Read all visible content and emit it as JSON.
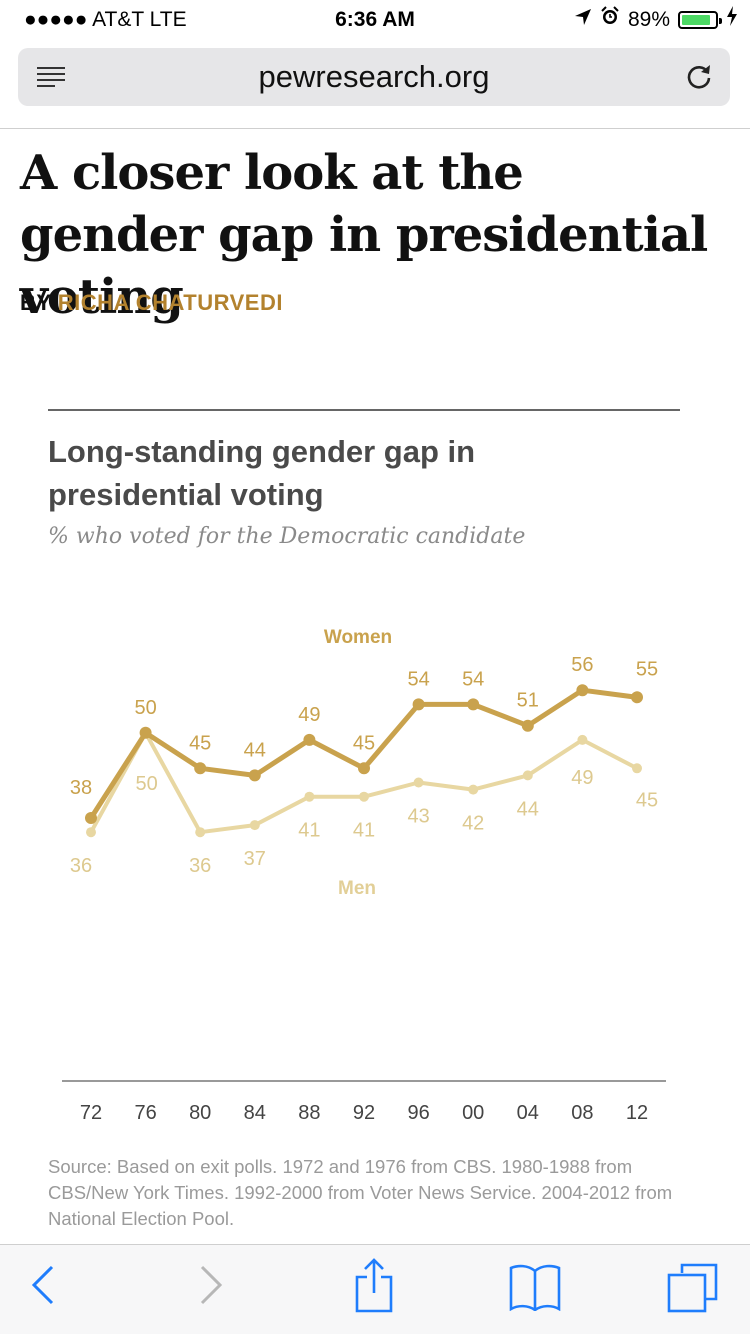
{
  "status_bar": {
    "carrier": "●●●●● AT&T  LTE",
    "time": "6:36 AM",
    "battery": "89%",
    "battery_fraction": 0.89
  },
  "browser": {
    "url": "pewresearch.org"
  },
  "article": {
    "headline": "A closer look at the gender gap in presidential voting",
    "byline_prefix": "BY",
    "author": "RICHA CHATURVEDI"
  },
  "chart_data": {
    "type": "line",
    "title": "Long-standing gender gap in presidential voting",
    "subtitle": "% who voted for the Democratic candidate",
    "categories": [
      "72",
      "76",
      "80",
      "84",
      "88",
      "92",
      "96",
      "00",
      "04",
      "08",
      "12"
    ],
    "series": [
      {
        "name": "Women",
        "color": "#c9a24d",
        "values": [
          38,
          50,
          45,
          44,
          49,
          45,
          54,
          54,
          51,
          56,
          55
        ]
      },
      {
        "name": "Men",
        "color": "#e8d7a2",
        "values": [
          36,
          50,
          36,
          37,
          41,
          41,
          43,
          42,
          44,
          49,
          45
        ]
      }
    ],
    "ylim": [
      30,
      60
    ],
    "source": "Source: Based on exit polls. 1972 and 1976 from CBS. 1980-1988 from CBS/New York Times. 1992-2000 from Voter News Service. 2004-2012 from National Election Pool."
  },
  "toolbar": {
    "icons": [
      "back-icon",
      "forward-icon",
      "share-icon",
      "bookmarks-icon",
      "tabs-icon"
    ]
  }
}
